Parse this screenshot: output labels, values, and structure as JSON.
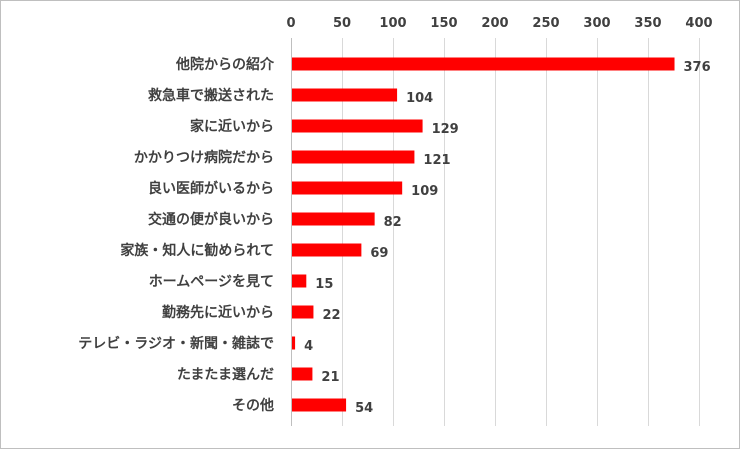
{
  "chart_data": {
    "type": "bar",
    "orientation": "horizontal",
    "title": "",
    "xlabel": "",
    "ylabel": "",
    "xlim": [
      0,
      400
    ],
    "x_ticks": [
      "0",
      "50",
      "100",
      "150",
      "200",
      "250",
      "300",
      "350",
      "400"
    ],
    "x_axis_position": "top",
    "grid": true,
    "bar_color": "#ff0000",
    "categories": [
      "他院からの紹介",
      "救急車で搬送された",
      "家に近いから",
      "かかりつけ病院だから",
      "良い医師がいるから",
      "交通の便が良いから",
      "家族・知人に勧められて",
      "ホームページを見て",
      "勤務先に近いから",
      "テレビ・ラジオ・新聞・雑誌で",
      "たまたま選んだ",
      "その他"
    ],
    "values": [
      376,
      104,
      129,
      121,
      109,
      82,
      69,
      15,
      22,
      4,
      21,
      54
    ]
  }
}
